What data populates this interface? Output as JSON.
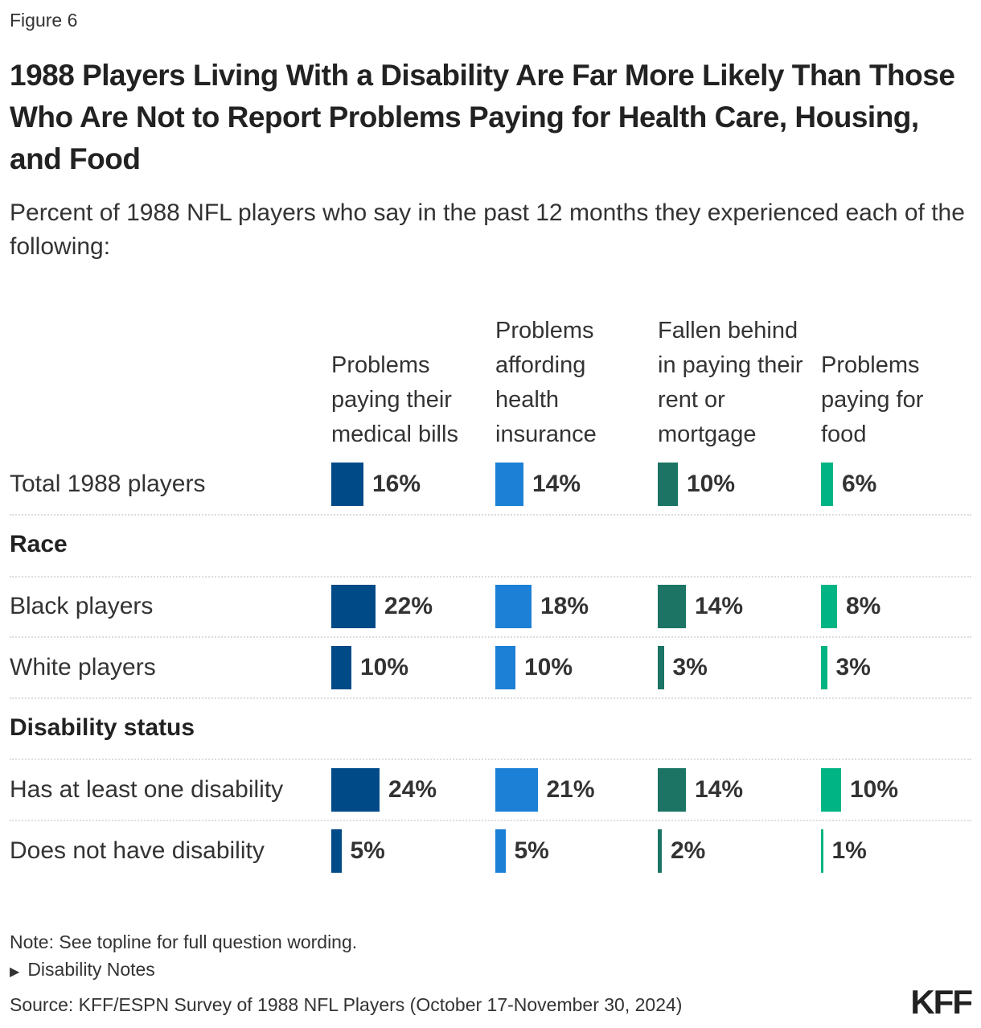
{
  "figure_label": "Figure 6",
  "title": "1988 Players Living With a Disability Are Far More Likely Than Those Who Are Not to Report Problems Paying for Health Care, Housing, and Food",
  "subtitle": "Percent of 1988 NFL players who say in the past 12 months they experienced each of the following:",
  "chart_data": {
    "type": "bar",
    "columns": [
      {
        "label": "Problems paying their medical bills",
        "color": "#004a87"
      },
      {
        "label": "Problems affording health insurance",
        "color": "#1c80d6"
      },
      {
        "label": "Fallen behind in paying their rent or mortgage",
        "color": "#1b7464"
      },
      {
        "label": "Problems paying for food",
        "color": "#00b483"
      }
    ],
    "rows": [
      {
        "group": null,
        "label": "Total 1988 players",
        "values": [
          16,
          14,
          10,
          6
        ]
      },
      {
        "group": "Race",
        "label": "Black players",
        "values": [
          22,
          18,
          14,
          8
        ]
      },
      {
        "group": "Race",
        "label": "White players",
        "values": [
          10,
          10,
          3,
          3
        ]
      },
      {
        "group": "Disability status",
        "label": "Has at least one disability",
        "values": [
          24,
          21,
          14,
          10
        ]
      },
      {
        "group": "Disability status",
        "label": "Does not have disability",
        "values": [
          5,
          5,
          2,
          1
        ]
      }
    ],
    "groups": [
      "Race",
      "Disability status"
    ],
    "value_suffix": "%"
  },
  "note": "Note: See topline for full question wording.",
  "disclosure": "Disability Notes",
  "source": "Source: KFF/ESPN Survey of 1988 NFL Players (October 17-November 30, 2024)",
  "logo": "KFF"
}
